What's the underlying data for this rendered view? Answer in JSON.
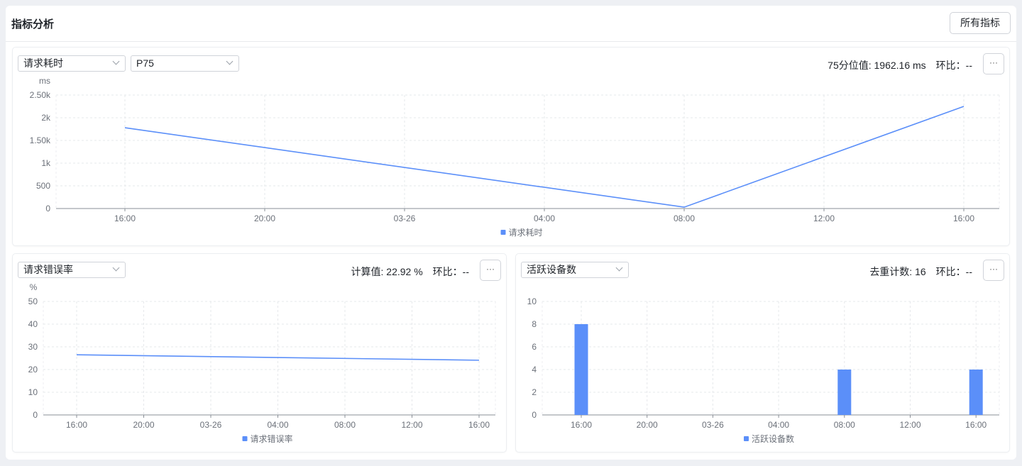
{
  "header": {
    "title": "指标分析",
    "all_metrics_button": "所有指标"
  },
  "colors": {
    "series": "#5b8ff9"
  },
  "panels": [
    {
      "metric_select": "请求耗时",
      "agg_select": "P75",
      "stat_label": "75分位值: 1962.16 ms",
      "ratio_label": "环比：--",
      "more_icon": "ellipsis-icon"
    },
    {
      "metric_select": "请求错误率",
      "stat_label": "计算值: 22.92 %",
      "ratio_label": "环比：--",
      "more_icon": "ellipsis-icon"
    },
    {
      "metric_select": "活跃设备数",
      "stat_label": "去重计数: 16",
      "ratio_label": "环比：--",
      "more_icon": "ellipsis-icon"
    }
  ],
  "chart_data": [
    {
      "type": "line",
      "unit": "ms",
      "categories": [
        "16:00",
        "20:00",
        "03-26",
        "04:00",
        "08:00",
        "12:00",
        "16:00"
      ],
      "yticks": [
        "0",
        "500",
        "1k",
        "1.50k",
        "2k",
        "2.50k"
      ],
      "ylim": [
        0,
        2500
      ],
      "grid": true,
      "legend": "bottom",
      "series": [
        {
          "name": "请求耗时",
          "values": [
            1780,
            null,
            null,
            null,
            30,
            null,
            2250
          ]
        }
      ]
    },
    {
      "type": "line",
      "unit": "%",
      "categories": [
        "16:00",
        "20:00",
        "03-26",
        "04:00",
        "08:00",
        "12:00",
        "16:00"
      ],
      "yticks": [
        "0",
        "10",
        "20",
        "30",
        "40",
        "50"
      ],
      "ylim": [
        0,
        50
      ],
      "grid": true,
      "legend": "bottom",
      "series": [
        {
          "name": "请求错误率",
          "values": [
            26.5,
            null,
            null,
            null,
            null,
            null,
            24.1
          ]
        }
      ]
    },
    {
      "type": "bar",
      "unit": "",
      "categories": [
        "16:00",
        "20:00",
        "03-26",
        "04:00",
        "08:00",
        "12:00",
        "16:00"
      ],
      "yticks": [
        "0",
        "2",
        "4",
        "6",
        "8",
        "10"
      ],
      "ylim": [
        0,
        10
      ],
      "grid": true,
      "legend": "bottom",
      "series": [
        {
          "name": "活跃设备数",
          "values": [
            8,
            0,
            0,
            0,
            4,
            0,
            4
          ]
        }
      ]
    }
  ]
}
